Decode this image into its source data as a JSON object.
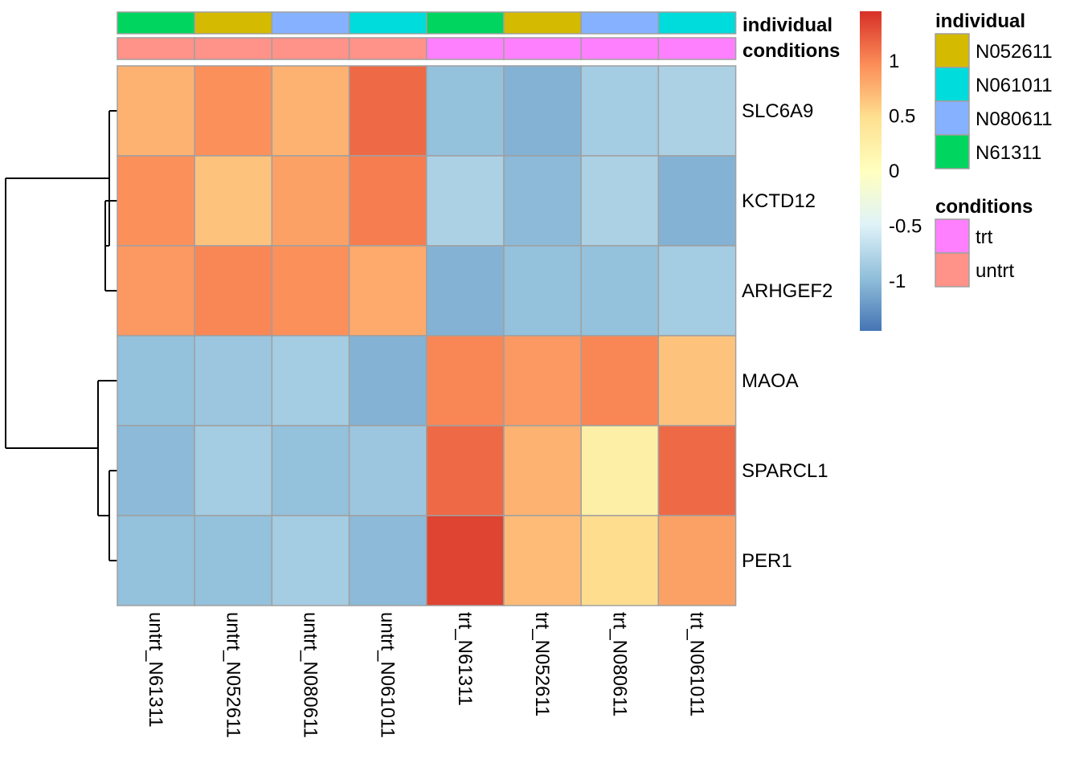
{
  "chart_data": {
    "type": "heatmap",
    "rows": [
      "SLC6A9",
      "KCTD12",
      "ARHGEF2",
      "MAOA",
      "SPARCL1",
      "PER1"
    ],
    "columns": [
      "untrt_N61311",
      "untrt_N052611",
      "untrt_N080611",
      "untrt_N061011",
      "trt_N61311",
      "trt_N052611",
      "trt_N080611",
      "trt_N061011"
    ],
    "values": [
      [
        0.75,
        0.95,
        0.75,
        1.15,
        -0.95,
        -1.05,
        -0.85,
        -0.8
      ],
      [
        0.95,
        0.65,
        0.85,
        1.05,
        -0.8,
        -1.0,
        -0.8,
        -1.05
      ],
      [
        0.9,
        1.0,
        0.95,
        0.8,
        -1.05,
        -0.95,
        -0.95,
        -0.85
      ],
      [
        -0.95,
        -0.9,
        -0.85,
        -1.05,
        1.0,
        0.9,
        1.0,
        0.65
      ],
      [
        -1.0,
        -0.85,
        -0.95,
        -0.9,
        1.15,
        0.75,
        0.25,
        1.15
      ],
      [
        -0.95,
        -0.95,
        -0.85,
        -1.0,
        1.35,
        0.7,
        0.5,
        0.85
      ]
    ],
    "column_annotations": {
      "individual": [
        "N61311",
        "N052611",
        "N080611",
        "N061011",
        "N61311",
        "N052611",
        "N080611",
        "N061011"
      ],
      "conditions": [
        "untrt",
        "untrt",
        "untrt",
        "untrt",
        "trt",
        "trt",
        "trt",
        "trt"
      ]
    },
    "annotation_names": [
      "individual",
      "conditions"
    ],
    "annotation_colors": {
      "individual": {
        "N052611": "#D4BA00",
        "N061011": "#00DBDB",
        "N080611": "#86B1FF",
        "N61311": "#00D65F"
      },
      "conditions": {
        "trt": "#FF80FF",
        "untrt": "#FF9289"
      }
    },
    "legends": [
      {
        "title": "individual",
        "items": [
          "N052611",
          "N061011",
          "N080611",
          "N61311"
        ]
      },
      {
        "title": "conditions",
        "items": [
          "trt",
          "untrt"
        ]
      }
    ],
    "color_scale": {
      "range": [
        -1.45,
        1.45
      ],
      "ticks": [
        1,
        0.5,
        0,
        -0.5,
        -1
      ],
      "tick_labels": [
        "1",
        "0.5",
        "0",
        "-0.5",
        "-1"
      ],
      "colors": [
        "#4575B4",
        "#91BFDB",
        "#E0F3F8",
        "#FFFFBF",
        "#FEE090",
        "#FC8D59",
        "#D73027"
      ]
    },
    "row_dendrogram": "yes",
    "cell_border_color": "#A0A0A0"
  }
}
